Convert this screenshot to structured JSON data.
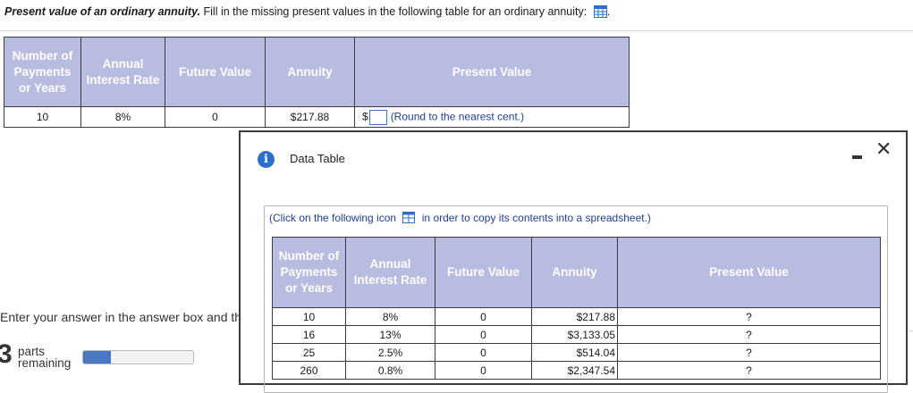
{
  "question": {
    "title": "Present value of an ordinary annuity.",
    "text": " Fill in the missing present values in the following table for an ordinary annuity:",
    "trailing": ".",
    "icon": "spreadsheet-icon"
  },
  "main_table": {
    "headers": [
      "Number of Payments or Years",
      "Annual Interest Rate",
      "Future Value",
      "Annuity",
      "Present Value"
    ],
    "row": {
      "payments": "10",
      "rate": "8%",
      "future_value": "0",
      "annuity": "$217.88",
      "currency": "$",
      "note": "(Round to the nearest cent.)"
    }
  },
  "instruction": "Enter your answer in the answer box and th",
  "parts": {
    "number": "3",
    "line1": "parts",
    "line2": "remaining",
    "progress_fraction": 0.25
  },
  "dialog": {
    "title": "Data Table",
    "click_note_before": "(Click on the following icon",
    "click_note_after": "in order to copy its contents into a spreadsheet.)",
    "headers": [
      "Number of Payments or Years",
      "Annual Interest Rate",
      "Future Value",
      "Annuity",
      "Present Value"
    ],
    "rows": [
      [
        "10",
        "8%",
        "0",
        "$217.88",
        "?"
      ],
      [
        "16",
        "13%",
        "0",
        "$3,133.05",
        "?"
      ],
      [
        "25",
        "2.5%",
        "0",
        "$514.04",
        "?"
      ],
      [
        "260",
        "0.8%",
        "0",
        "$2,347.54",
        "?"
      ]
    ]
  },
  "colors": {
    "header_bg": "#b8bce0",
    "accent_blue": "#2a6fc9",
    "link_blue": "#1f3e9a"
  }
}
